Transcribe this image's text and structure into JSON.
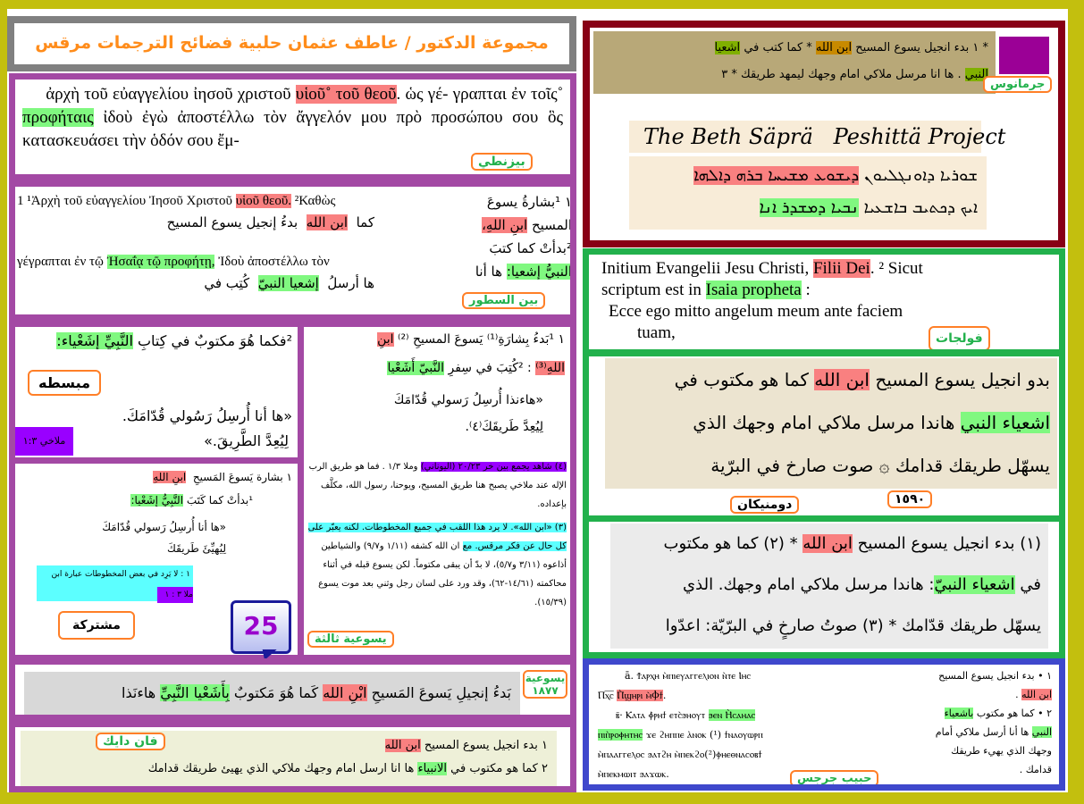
{
  "title": "مجموعة الدكتور / عاطف عثمان حلبية  فضائح الترجمات  مرقس ١-١،٢",
  "colors": {
    "border_frame": "#c3bf0e",
    "title_text": "#ff8c1a",
    "son_of_god_highlight": "#f98080",
    "prophet_highlight": "#80f880",
    "byzantine_border": "#a349a4",
    "germanus_border": "#880015",
    "vulgate_border": "#22b14c",
    "coptic_border": "#3f48cc"
  },
  "byzantine": {
    "lines": [
      "ἀρχὴ τοῦ εὐαγγελίου ἰησοῦ χριστοῦ",
      "υἱοῦ˚ τοῦ θεοῦ",
      ". ὡς γέ-",
      "γραπται ἐν τοῖς˚",
      "προφήταις",
      "ἰδοὺ ἐγὼ ἀποστέλλω τὸν ἄγγελόν",
      "μου πρὸ προσώπου σου ὃς κατασκευάσει τὴν ὁδόν σου ἔμ-"
    ],
    "label": "بيزنطي"
  },
  "interlinear": {
    "greek1": "1 ¹Ἀρχὴ τοῦ εὐαγγελίου Ἰησοῦ Χριστοῦ",
    "greek1_hl": "υἱοῦ θεοῦ.",
    "greek1_end": "²Καθὼς",
    "arabic1": "بدءُ   إنجيل   يسوع   المسيح",
    "arabic1_hl": "ابن   الله",
    "arabic1_end": "كما",
    "greek2": "γέγραπται ἐν τῷ",
    "greek2_hl": "Ἠσαΐᾳ τῷ προφήτῃ,",
    "greek2_end": "Ἰδοὺ ἀποστέλλω τὸν",
    "arabic2": "كُتِب   في",
    "arabic2_hl": "إشعيا   النبيّ",
    "arabic2_end": "ها   أرسلُ",
    "right1": "١ ¹بشارةُ يسوعَ",
    "right2": "المسيح",
    "right2_hl": "ابنِ اللهِ،",
    "right3": "²بدأتْ كما كتبَ",
    "right4_hl": "النبيُّ إشعيا:",
    "right4": "ها أنا",
    "label": "بين السطور"
  },
  "simplified": {
    "line1": "²فكما هُوَ مكتوبٌ في كِتابِ",
    "line1_hl": "النَّبِيِّ إشَعْياء:",
    "line2": "«ها أنا أُرسِلُ رَسُولي قُدّامَكَ.",
    "line3": "لِيُعِدَّ الطَّرِيقَ.»",
    "ref": "ملاخي ١:٣",
    "label": "مبسطه"
  },
  "shared": {
    "line1": "١   بشارة يَسوعَ المَسيحِ",
    "line1_hl": "ابنِ اللهِ",
    "line2": "¹بدأتْ كما كَتَبَ",
    "line2_hl": "النَّبِيُّ إشَعْيا:",
    "line3": "«ها أنا أُرسِلُ رَسولي قُدّامَكَ",
    "line4": "لِيُهيِّئَ طَريقَكَ",
    "note1": "١ : لا يَرِد في بعض المخطوطات عبارة ابن الله.",
    "note2": "ملا ٣ : ١",
    "label": "مشتركة"
  },
  "badge": "25",
  "jesuit3": {
    "line1": "١ ¹بَدءُ بِشارَةِ⁽¹⁾ يَسوعَ المسيحِ ⁽²⁾",
    "line1_hl": "ابنِ",
    "line2_hl1": "اللهِ⁽³⁾",
    "line2": ": ²كُتِبَ في سِفرِ",
    "line2_hl2": "النَّبيّ أَشَعْيا",
    "line3": "«هاءنذا أُرسِلُ رَسولي قُدّامَكَ",
    "line4": "لِيُعِدَّ طَريقَكَ⁽٤⁾.",
    "note4_hl": "(٤) شاهد يجمع بين خر ٢٠/٢٣ (اليوناني)",
    "note4": "وملا ١/٣ . فما هو طريق الرب الإله عند ملاخي يصبح هنا طريق المسيح، ويوحنا، رسول الله، مكلَّف بإعداده.",
    "note3_hl": "(٣) «ابن الله». لا يرد هذا اللقب في جميع المخطوطات. لكنه يعبّر على كل حال عن فكر مرقس. مع",
    "note3": "ان الله كشفه (١/١١ و٩/٧) والشياطين أذاعوه (٣/١١ و٥/٧)، لا بدّ أن يبقى مكتوماً. لكن يسوع قبله في أثناء محاكمته (١٤/٦١-٦٢)، وقد ورد على لسان رجل وثني بعد موت يسوع (١٥/٣٩).",
    "label": "يسوعية ثالثة"
  },
  "jesuit1877": {
    "text1": "بَدءُ إنجيلِ يَسوعَ المَسيحِ",
    "text1_hl": "ابْنِ الله",
    "text2": "كَما هُوَ مَكتوبٌ",
    "text2_hl": "بِأَشَعْيا النَّبِيِّ",
    "text3": "هاءنَذا",
    "label": "يسوعية ١٨٧٧"
  },
  "vandyck": {
    "line1": "١ بدء انجيل يسوع المسيح",
    "line1_hl": "ابن الله",
    "line2": "٢ كما هو مكتوب في",
    "line2_hl": "الانبياء",
    "line3": "ها انا ارسل امام وجهك ملاكي الذي يهيئ طريقك قدامك",
    "label": "فان دايك"
  },
  "germanus": {
    "line1": "* ١ بدء انجيل يسوع المسيح",
    "line1_hl": "ابن الله",
    "line1_end": "* كما كتب في",
    "line1_hl2": "اشعيا",
    "line2_hl": "النبي",
    "line2": ". ها انا مرسل ملاكي امام وجهك ليمهد طريقك * ٣",
    "label": "جرمانوس"
  },
  "peshitta": {
    "heading": "The Beth Säprä   Peshittä Project",
    "syriac1": "ܫܘܪܝܐ ܕܐܘܢܓܠܝܘܢ",
    "syriac1_hl": "ܕܝܫܘܥ ܡܫܝܚܐ ܒܪܗ ܕܐܠܗܐ",
    "syriac2": "ܐܝܟ ܕܟܬܝܒ ܒܐܫܥܝܐ",
    "syriac2_hl": "ܢܒܝܐ ܕܡܫܕܪ ܐܢܐ"
  },
  "vulgate": {
    "text1": "Initium Evangelii Jesu Christi,",
    "text1_hl": "Filii Dei",
    "text1_end": ". ² Sicut",
    "text2": "scriptum est in",
    "text2_hl": "Isaia propheta",
    "text2_end": ":",
    "text3": "Ecce ego mitto angelum meum ante faciem",
    "text4": "tuam,",
    "label": "فولجات"
  },
  "dominican": {
    "line1": "بدو انجيل يسوع المسيح",
    "line1_hl": "ابن الله",
    "line1_end": "كما هو مكتوب في",
    "line2_hl": "اشعياء النبي",
    "line2": "هاندا مرسل ملاكي امام وجهك الذي",
    "line3": "يسهّل طريقك قدامك ۞ صوت صارخ في البرّية",
    "year": "١٥٩٠",
    "label": "دومنيكان"
  },
  "dominican2": {
    "line1": "(١) بدء انجيل يسوع المسيح",
    "line1_hl": "ابن الله",
    "line1_end": "* (٢) كما هو مكتوب",
    "line2": "في",
    "line2_hl": "اشعياء النبيّ",
    "line2_end": ": هاندا مرسل ملاكي امام وجهك. الذي",
    "line3": "يسهّل طريقك قدّامك * (٣) صوتُ صارخٍ في البرّيّة: اعدّوا"
  },
  "coptic": {
    "line1": "ā. Ϯⲁⲣⲭⲏ ⲙ̀ⲡⲓⲉⲩⲁⲅⲅⲉⲗⲓⲟⲛ ⲛ̀ⲧⲉ Ⲓⲏⲥ",
    "line2": "Ⲡⲭ̅ⲥ̅",
    "line2_hl": "Ⲡ̀ϣⲏⲣⲓ ⲙ̀Ⲫϯ",
    "line3": "ⲃ̄· Ⲕⲁⲧⲁ ⲫ̀ⲣⲏϯ ⲉⲧⲥ̀ϧⲏⲟⲩⲧ",
    "line3_hl": "ϧⲉⲛ Ⲏ̀ⲥⲁⲏⲁⲥ",
    "line4_hl": "ⲡⲓⲡ̀ⲣⲟⲫⲏⲧⲏⲥ",
    "line4": "ϫⲉ ϩⲏⲡⲡⲉ ⲁ̀ⲛⲟⲕ (¹) ϯⲛⲁⲟⲩⲱⲣⲡ",
    "line5": "ⲙ̀ⲡⲁⲁⲅⲅⲉⲗⲟⲥ  ϧⲁⲧϩⲏ ⲙ̀ⲡⲉⲕϩⲟ(²)ⲫⲏⲉⲑⲛⲁⲥⲟⲃϯ",
    "line6": "ⲙ̀ⲡⲉⲕⲙⲱⲓⲧ ϧⲁϫⲱⲕ.",
    "ar1": "١ • بدء انجيل يسوع المسيح",
    "ar1_hl": "ابن الله",
    "ar2": "٢ • كما هو مكتوب",
    "ar2_hl": "باشعياء",
    "ar3_hl": "النبي",
    "ar3": "ها أنا أرسل ملاكي أمام",
    "ar4": "وجهك الذي يهيء طريقك",
    "ar5": "قدامك .",
    "label": "حبيب جرجس"
  }
}
